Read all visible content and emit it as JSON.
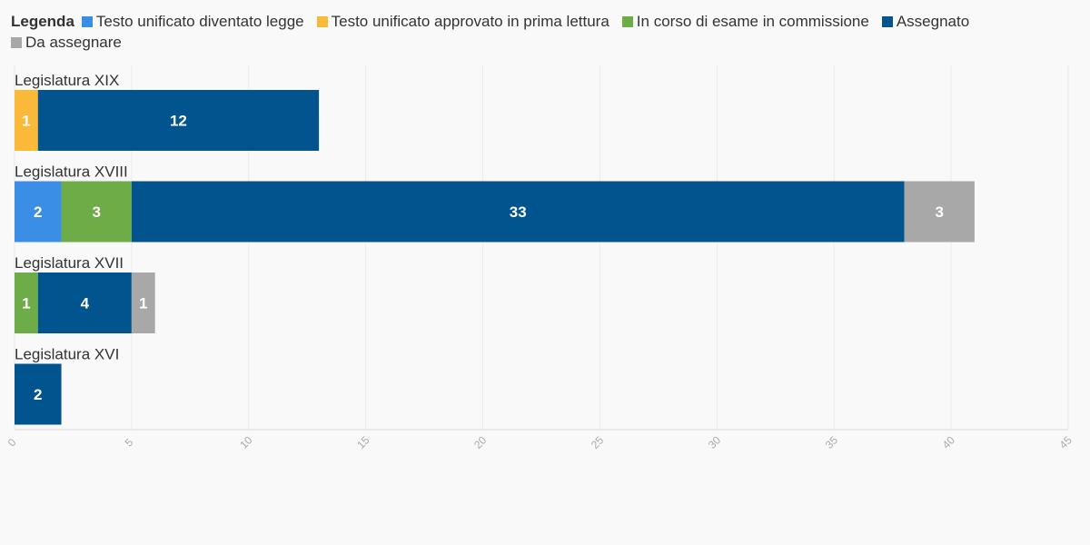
{
  "legend": {
    "title": "Legenda"
  },
  "chart_data": {
    "type": "bar",
    "orientation": "horizontal",
    "stacked": true,
    "title": "",
    "xlabel": "",
    "ylabel": "",
    "xlim": [
      0,
      45
    ],
    "x_ticks": [
      0,
      5,
      10,
      15,
      20,
      25,
      30,
      35,
      40,
      45
    ],
    "grid": true,
    "legend_position": "top",
    "categories": [
      "Legislatura XIX",
      "Legislatura XVIII",
      "Legislatura XVII",
      "Legislatura XVI"
    ],
    "series": [
      {
        "name": "Testo unificato diventato legge",
        "color": "#3a8ee6",
        "values": [
          0,
          2,
          0,
          0
        ]
      },
      {
        "name": "Testo unificato approvato in prima lettura",
        "color": "#fbb93a",
        "values": [
          1,
          0,
          0,
          0
        ]
      },
      {
        "name": "In corso di esame in commissione",
        "color": "#6eac48",
        "values": [
          0,
          3,
          1,
          0
        ]
      },
      {
        "name": "Assegnato",
        "color": "#02548e",
        "values": [
          12,
          33,
          4,
          2
        ]
      },
      {
        "name": "Da assegnare",
        "color": "#a8a8a8",
        "values": [
          0,
          3,
          1,
          0
        ]
      }
    ]
  }
}
